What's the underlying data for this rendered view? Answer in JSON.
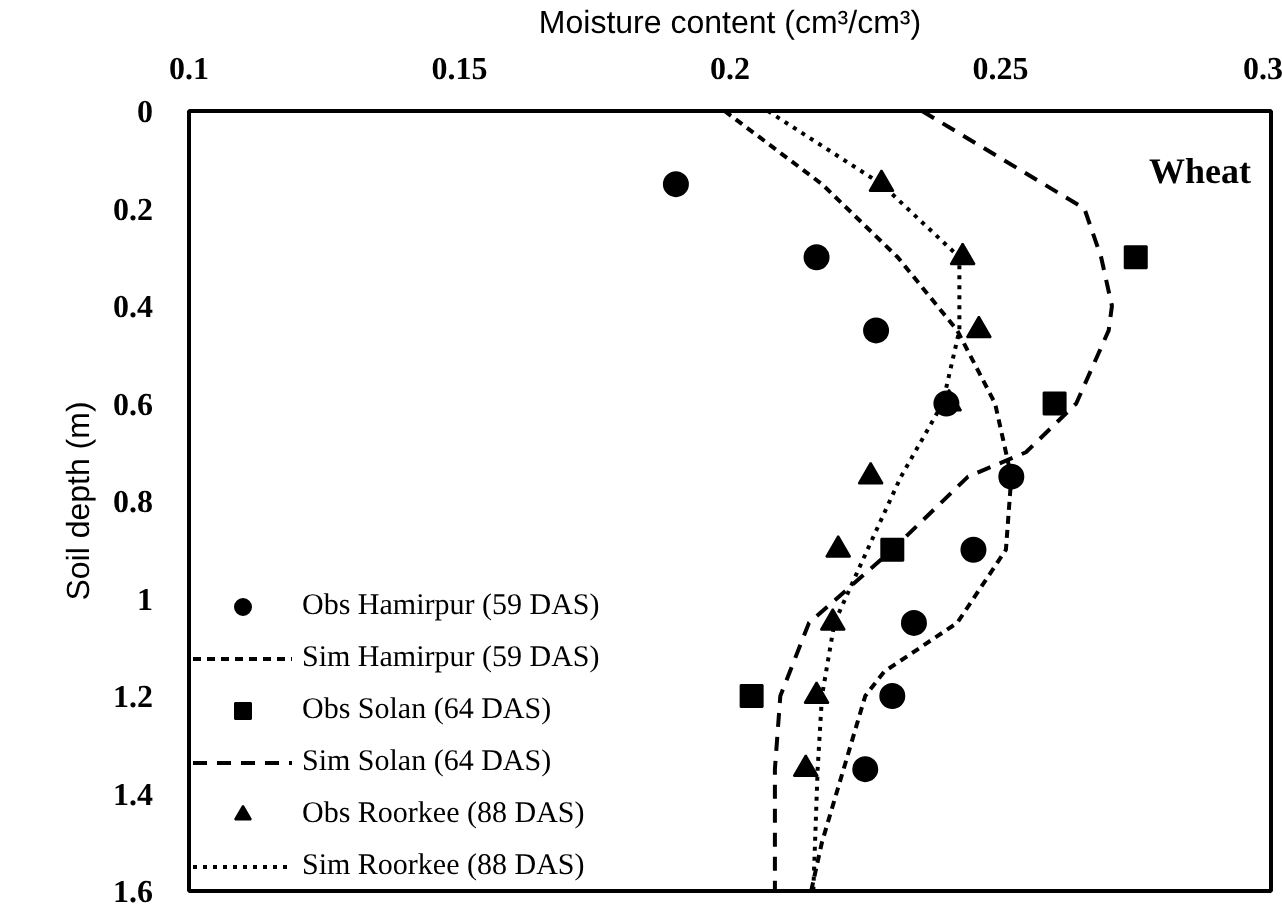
{
  "chart_data": {
    "type": "scatter",
    "xlabel": "Moisture content (cm³/cm³)",
    "ylabel": "Soil depth (m)",
    "annotations": [
      "Wheat"
    ],
    "xlim": [
      0.1,
      0.3
    ],
    "xticks": [
      0.1,
      0.15,
      0.2,
      0.25,
      0.3
    ],
    "ylim": [
      1.6,
      0
    ],
    "yticks": [
      0,
      0.2,
      0.4,
      0.6,
      0.8,
      1,
      1.2,
      1.4,
      1.6
    ],
    "grid": false,
    "legend": "bottom left",
    "series": [
      {
        "name": "Obs Hamirpur (59 DAS)",
        "marker": "circle",
        "color": "#000000",
        "x": [
          0.19,
          0.216,
          0.227,
          0.24,
          0.252,
          0.245,
          0.234,
          0.23,
          0.225
        ],
        "values": [
          0.15,
          0.3,
          0.45,
          0.6,
          0.75,
          0.9,
          1.05,
          1.2,
          1.35
        ]
      },
      {
        "name": "Sim Hamirpur (59 DAS)",
        "type": "line",
        "line_style": "dashed",
        "color": "#000000",
        "x": [
          0.199,
          0.217,
          0.231,
          0.242,
          0.249,
          0.252,
          0.251,
          0.242,
          0.2285,
          0.225,
          0.221,
          0.217,
          0.215
        ],
        "values": [
          0,
          0.15,
          0.3,
          0.45,
          0.6,
          0.75,
          0.9,
          1.05,
          1.15,
          1.2,
          1.35,
          1.5,
          1.6
        ]
      },
      {
        "name": "Obs Solan (64 DAS)",
        "marker": "square",
        "color": "#000000",
        "x": [
          0.275,
          0.26,
          0.23,
          0.204
        ],
        "values": [
          0.3,
          0.6,
          0.9,
          1.2
        ]
      },
      {
        "name": "Sim Solan (64 DAS)",
        "type": "line",
        "line_style": "longdash",
        "color": "#000000",
        "x": [
          0.2355,
          0.258,
          0.2655,
          0.2686,
          0.2706,
          0.27,
          0.264,
          0.2547,
          0.244,
          0.23,
          0.2146,
          0.2093,
          0.2083,
          0.2083
        ],
        "values": [
          0,
          0.15,
          0.2,
          0.3,
          0.4,
          0.45,
          0.6,
          0.7,
          0.75,
          0.9,
          1.05,
          1.2,
          1.35,
          1.6
        ]
      },
      {
        "name": "Obs Roorkee (88 DAS)",
        "marker": "triangle",
        "color": "#000000",
        "x": [
          0.228,
          0.243,
          0.246,
          0.2405,
          0.226,
          0.22,
          0.219,
          0.216,
          0.214
        ],
        "values": [
          0.15,
          0.3,
          0.45,
          0.6,
          0.75,
          0.9,
          1.05,
          1.2,
          1.35
        ]
      },
      {
        "name": "Sim Roorkee (88 DAS)",
        "type": "line",
        "line_style": "dotted",
        "color": "#000000",
        "x": [
          0.207,
          0.228,
          0.2424,
          0.2424,
          0.2393,
          0.2316,
          0.2254,
          0.2193,
          0.217,
          0.2162,
          0.2154
        ],
        "values": [
          0,
          0.15,
          0.3,
          0.45,
          0.6,
          0.75,
          0.9,
          1.05,
          1.2,
          1.35,
          1.6
        ]
      }
    ]
  }
}
